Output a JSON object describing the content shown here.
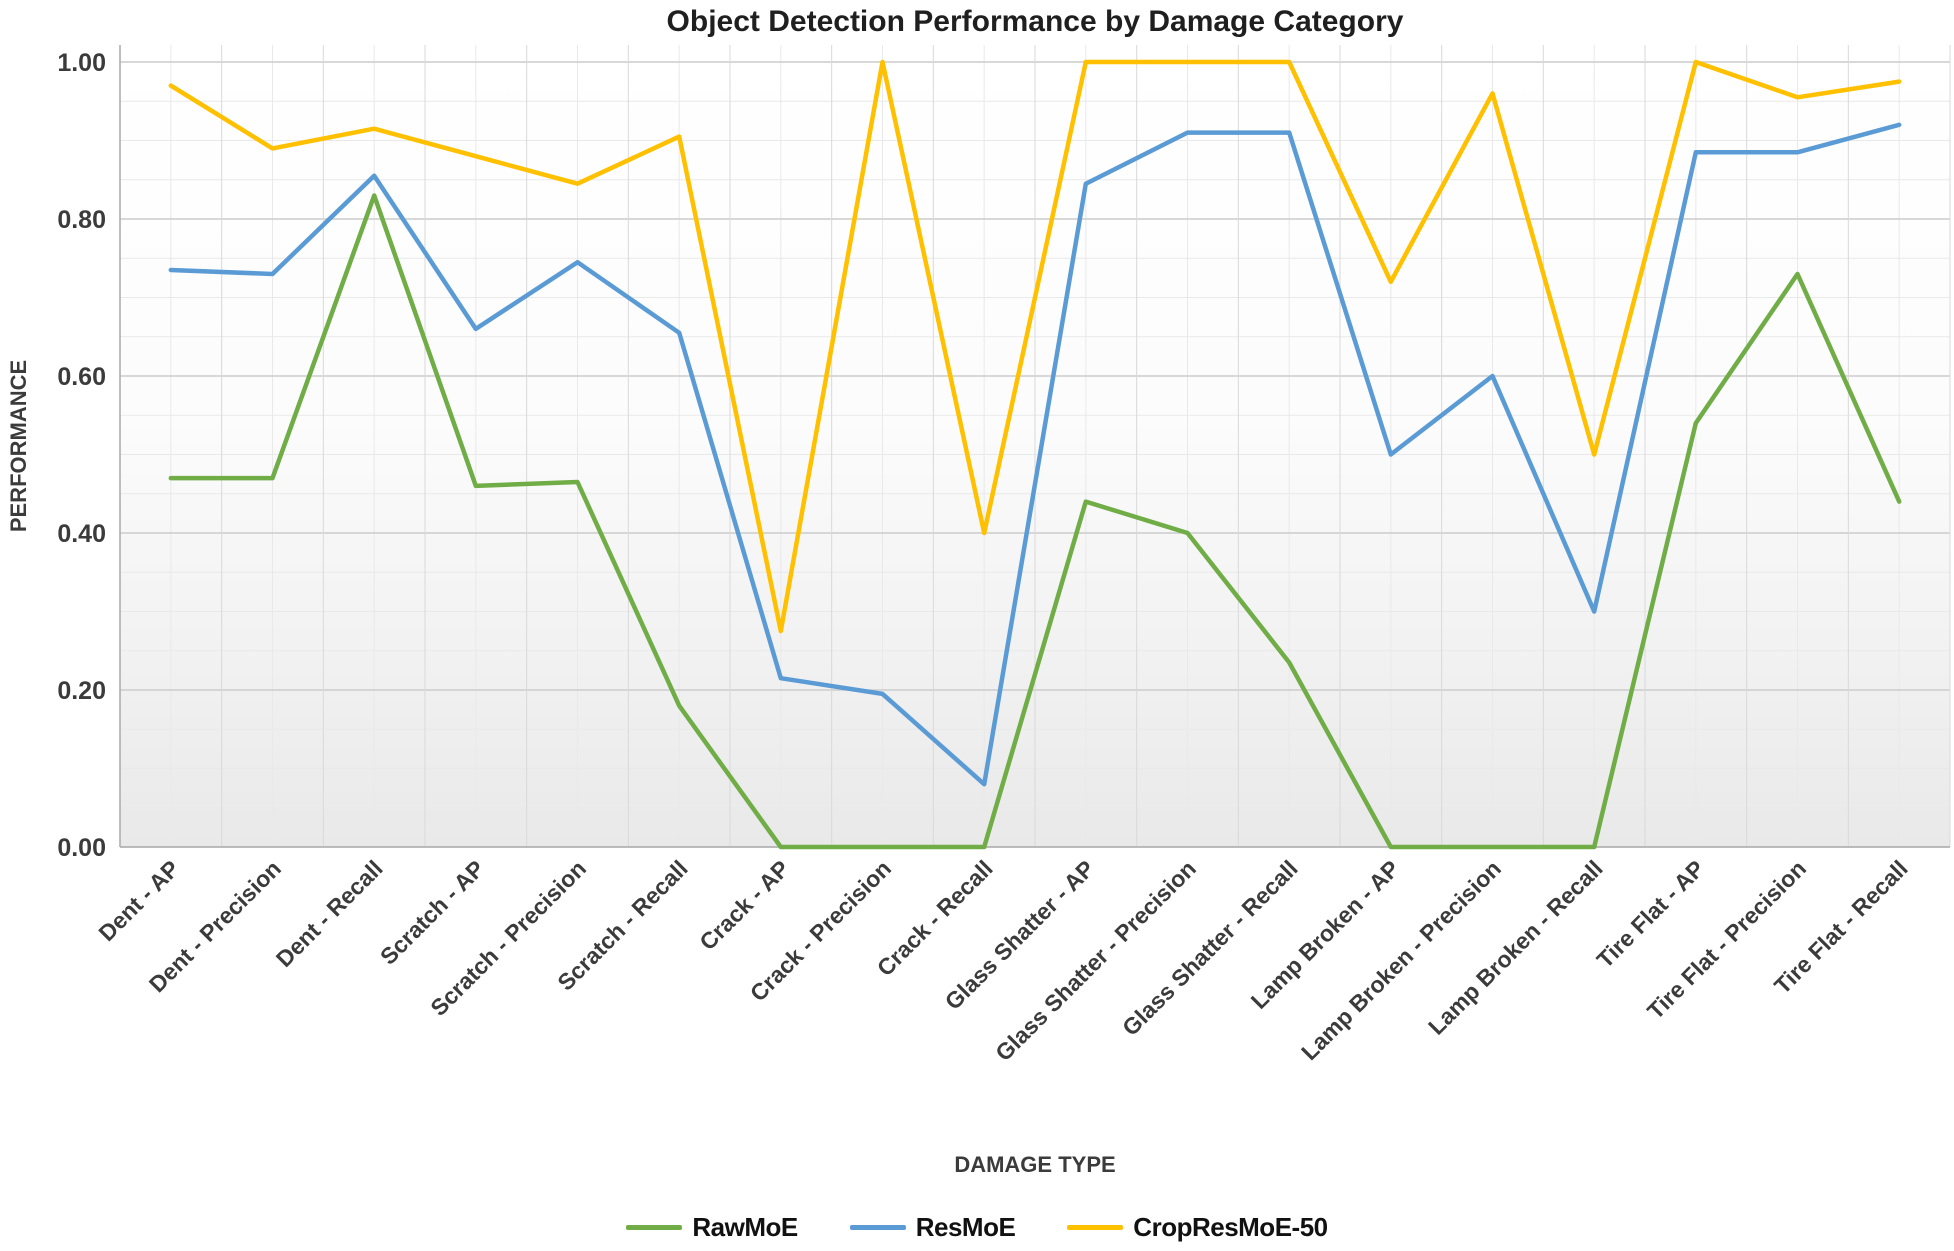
{
  "chart_data": {
    "type": "line",
    "title": "Object Detection Performance by Damage Category",
    "xlabel": "DAMAGE TYPE",
    "ylabel": "PERFORMANCE",
    "categories": [
      "Dent - AP",
      "Dent - Precision",
      "Dent - Recall",
      "Scratch - AP",
      "Scratch - Precision",
      "Scratch - Recall",
      "Crack - AP",
      "Crack - Precision",
      "Crack - Recall",
      "Glass Shatter - AP",
      "Glass Shatter - Precision",
      "Glass Shatter - Recall",
      "Lamp Broken - AP",
      "Lamp Broken - Precision",
      "Lamp Broken - Recall",
      "Tire Flat - AP",
      "Tire Flat - Precision",
      "Tire Flat - Recall"
    ],
    "series": [
      {
        "name": "RawMoE",
        "color": "#70AD47",
        "values": [
          0.47,
          0.47,
          0.83,
          0.46,
          0.465,
          0.18,
          0.0,
          0.0,
          0.0,
          0.44,
          0.4,
          0.235,
          0.0,
          0.0,
          0.0,
          0.54,
          0.73,
          0.44
        ]
      },
      {
        "name": "ResMoE",
        "color": "#5B9BD5",
        "values": [
          0.735,
          0.73,
          0.855,
          0.66,
          0.745,
          0.655,
          0.215,
          0.195,
          0.08,
          0.845,
          0.91,
          0.91,
          0.5,
          0.6,
          0.3,
          0.885,
          0.885,
          0.92
        ]
      },
      {
        "name": "CropResMoE-50",
        "color": "#FFC000",
        "values": [
          0.97,
          0.89,
          0.915,
          0.88,
          0.845,
          0.905,
          0.275,
          1.0,
          0.4,
          1.0,
          1.0,
          1.0,
          0.72,
          0.96,
          0.5,
          1.0,
          0.955,
          0.975
        ]
      }
    ],
    "ylim": [
      0.0,
      1.0
    ],
    "ytick_step": 0.2,
    "ytick_labels": [
      "0.00",
      "0.20",
      "0.40",
      "0.60",
      "0.80",
      "1.00"
    ],
    "minor_ytick_step": 0.05,
    "grid": true,
    "legend_position": "bottom",
    "colors": {
      "major_grid": "#cccccc",
      "minor_grid": "#e9e9e9",
      "axis_line": "#aeaeae",
      "plot_bg_top": "#ffffff",
      "plot_bg_bottom": "#e9e9e9",
      "title_text": "#1f1f1f",
      "tick_text": "#3b3b3b"
    }
  }
}
